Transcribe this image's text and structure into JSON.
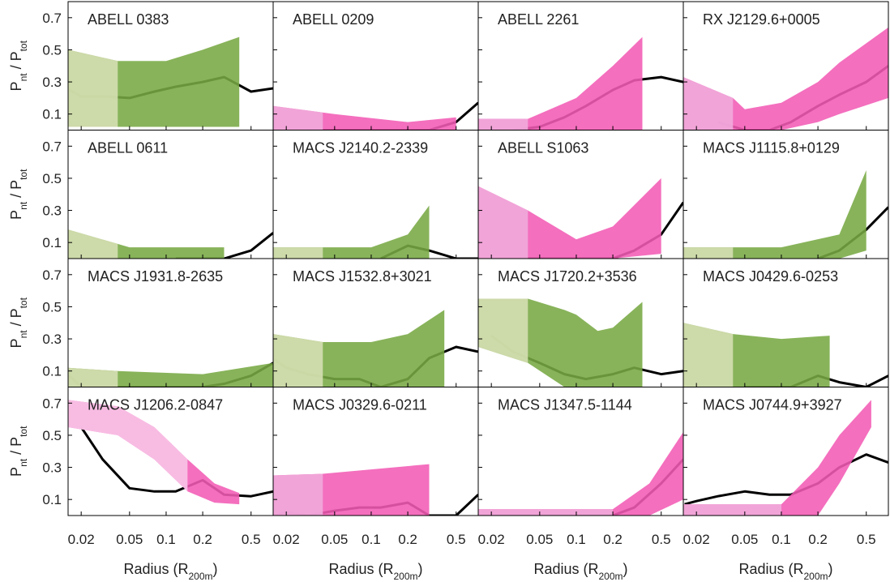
{
  "chart_data": {
    "type": "line",
    "xscale": "log",
    "xlim": [
      0.0156,
      0.76
    ],
    "ylim": [
      0,
      0.8
    ],
    "xticks": [
      0.02,
      0.05,
      0.1,
      0.2,
      0.5
    ],
    "yticks": [
      0.1,
      0.3,
      0.5,
      0.7
    ],
    "ylabel_parts": [
      "P",
      "nt",
      " / P",
      "tot"
    ],
    "xlabel_parts": [
      "Radius (R",
      "200m",
      ")"
    ],
    "line_color": "#000000",
    "line_x": [
      0.016,
      0.02,
      0.03,
      0.05,
      0.08,
      0.12,
      0.2,
      0.3,
      0.5,
      0.76
    ],
    "panels": [
      {
        "title": "ABELL 0383",
        "color": "#77a843",
        "light_color": "#d3ddb0",
        "split": 0.04,
        "band": {
          "x": [
            0.0156,
            0.04,
            0.1,
            0.2,
            0.4
          ],
          "lower": [
            0.02,
            0.02,
            0.02,
            0.02,
            0.02
          ],
          "upper": [
            0.5,
            0.43,
            0.43,
            0.5,
            0.58
          ]
        },
        "values": [
          0.25,
          0.21,
          0.21,
          0.2,
          0.24,
          0.27,
          0.3,
          0.33,
          0.24,
          0.26
        ]
      },
      {
        "title": "ABELL 0209",
        "color": "#f35bb5",
        "light_color": "#f0a8da",
        "split": 0.04,
        "band": {
          "x": [
            0.0156,
            0.05,
            0.2,
            0.5
          ],
          "lower": [
            0,
            0,
            0,
            0
          ],
          "upper": [
            0.15,
            0.1,
            0.05,
            0.08
          ]
        },
        "values": [
          null,
          null,
          0.0,
          0.0,
          0.0,
          0.0,
          0.0,
          0.0,
          0.05,
          0.17
        ]
      },
      {
        "title": "ABELL 2261",
        "color": "#f35bb5",
        "light_color": "#f0a8da",
        "split": 0.04,
        "band": {
          "x": [
            0.0156,
            0.04,
            0.1,
            0.2,
            0.35
          ],
          "lower": [
            0,
            0,
            0,
            0,
            0
          ],
          "upper": [
            0.07,
            0.07,
            0.2,
            0.4,
            0.58
          ]
        },
        "values": [
          null,
          null,
          0.0,
          0.02,
          0.08,
          0.15,
          0.25,
          0.31,
          0.33,
          0.3
        ]
      },
      {
        "title": "RX J2129.6+0005",
        "color": "#f35bb5",
        "light_color": "#f0a8da",
        "split": 0.04,
        "band": {
          "x": [
            0.0156,
            0.04,
            0.05,
            0.1,
            0.2,
            0.3,
            0.76
          ],
          "lower": [
            0,
            0,
            0,
            0,
            0.05,
            0.1,
            0.2
          ],
          "upper": [
            0.33,
            0.2,
            0.13,
            0.17,
            0.3,
            0.42,
            0.64
          ]
        },
        "values": [
          null,
          null,
          0.05,
          0.0,
          0.0,
          0.05,
          0.15,
          0.22,
          0.3,
          0.4
        ]
      },
      {
        "title": "ABELL 0611",
        "color": "#77a843",
        "light_color": "#d3ddb0",
        "split": 0.04,
        "band": {
          "x": [
            0.0156,
            0.05,
            0.3
          ],
          "lower": [
            0,
            0,
            0
          ],
          "upper": [
            0.18,
            0.07,
            0.07
          ]
        },
        "values": [
          null,
          null,
          null,
          null,
          null,
          0.0,
          0.0,
          0.0,
          0.05,
          0.16
        ]
      },
      {
        "title": "MACS J2140.2-2339",
        "color": "#77a843",
        "light_color": "#d3ddb0",
        "split": 0.04,
        "band": {
          "x": [
            0.0156,
            0.1,
            0.2,
            0.3
          ],
          "lower": [
            0,
            0,
            0,
            0
          ],
          "upper": [
            0.07,
            0.07,
            0.15,
            0.33
          ]
        },
        "values": [
          null,
          null,
          null,
          null,
          null,
          0.0,
          0.08,
          0.05,
          0.0,
          0.0
        ]
      },
      {
        "title": "ABELL S1063",
        "color": "#f35bb5",
        "light_color": "#f0a8da",
        "split": 0.04,
        "band": {
          "x": [
            0.0156,
            0.04,
            0.1,
            0.2,
            0.5
          ],
          "lower": [
            0,
            0,
            0,
            0,
            0.03
          ],
          "upper": [
            0.45,
            0.3,
            0.12,
            0.2,
            0.5
          ]
        },
        "values": [
          null,
          0.0,
          0.0,
          0.0,
          0.0,
          0.0,
          0.0,
          0.05,
          0.15,
          0.35
        ]
      },
      {
        "title": "MACS J1115.8+0129",
        "color": "#77a843",
        "light_color": "#d3ddb0",
        "split": 0.04,
        "band": {
          "x": [
            0.0156,
            0.1,
            0.3,
            0.5
          ],
          "lower": [
            0,
            0,
            0,
            0.05
          ],
          "upper": [
            0.07,
            0.07,
            0.15,
            0.55
          ]
        },
        "values": [
          null,
          null,
          null,
          null,
          null,
          null,
          0.0,
          0.05,
          0.18,
          0.32
        ]
      },
      {
        "title": "MACS J1931.8-2635",
        "color": "#77a843",
        "light_color": "#d3ddb0",
        "split": 0.04,
        "band": {
          "x": [
            0.0156,
            0.04,
            0.2,
            0.76
          ],
          "lower": [
            0,
            0,
            0,
            0
          ],
          "upper": [
            0.12,
            0.1,
            0.08,
            0.15
          ]
        },
        "values": [
          0.07,
          0.0,
          0.0,
          0.0,
          0.0,
          0.0,
          0.0,
          0.02,
          0.07,
          0.15
        ]
      },
      {
        "title": "MACS J1532.8+3021",
        "color": "#77a843",
        "light_color": "#d3ddb0",
        "split": 0.04,
        "band": {
          "x": [
            0.0156,
            0.04,
            0.1,
            0.2,
            0.4
          ],
          "lower": [
            0,
            0,
            0,
            0,
            0
          ],
          "upper": [
            0.33,
            0.28,
            0.28,
            0.33,
            0.48
          ]
        },
        "values": [
          0.17,
          0.12,
          0.08,
          0.05,
          0.05,
          0.0,
          0.05,
          0.18,
          0.25,
          0.22
        ]
      },
      {
        "title": "MACS J1720.2+3536",
        "color": "#77a843",
        "light_color": "#d3ddb0",
        "split": 0.04,
        "band": {
          "x": [
            0.0156,
            0.04,
            0.08,
            0.1,
            0.15,
            0.2,
            0.35
          ],
          "lower": [
            0.25,
            0.15,
            0.0,
            0.0,
            0.0,
            0.0,
            0.0
          ],
          "upper": [
            0.55,
            0.55,
            0.48,
            0.45,
            0.35,
            0.37,
            0.53
          ]
        },
        "values": [
          null,
          0.32,
          0.22,
          0.15,
          0.08,
          0.05,
          0.08,
          0.12,
          0.08,
          0.1
        ]
      },
      {
        "title": "MACS J0429.6-0253",
        "color": "#77a843",
        "light_color": "#d3ddb0",
        "split": 0.04,
        "band": {
          "x": [
            0.0156,
            0.04,
            0.1,
            0.25
          ],
          "lower": [
            0,
            0,
            0,
            0
          ],
          "upper": [
            0.4,
            0.33,
            0.3,
            0.32
          ]
        },
        "values": [
          null,
          null,
          null,
          0.0,
          0.0,
          0.0,
          0.07,
          0.03,
          0.0,
          0.07
        ]
      },
      {
        "title": "MACS J1206.2-0847",
        "color": "#f35bb5",
        "light_color": "#f7c2e6",
        "split": 0.15,
        "band": {
          "x": [
            0.0156,
            0.04,
            0.08,
            0.15,
            0.25,
            0.4
          ],
          "lower": [
            0.55,
            0.5,
            0.35,
            0.15,
            0.08,
            0.07
          ],
          "upper": [
            0.72,
            0.68,
            0.55,
            0.35,
            0.2,
            0.14
          ]
        },
        "values": [
          null,
          0.55,
          0.35,
          0.17,
          0.15,
          0.15,
          0.22,
          0.13,
          0.12,
          0.15
        ]
      },
      {
        "title": "MACS J0329.6-0211",
        "color": "#f35bb5",
        "light_color": "#f0a8da",
        "split": 0.04,
        "band": {
          "x": [
            0.0156,
            0.04,
            0.3
          ],
          "lower": [
            0,
            0,
            0
          ],
          "upper": [
            0.25,
            0.26,
            0.32
          ]
        },
        "values": [
          0.0,
          0.02,
          0.0,
          0.03,
          0.05,
          0.05,
          0.08,
          0.0,
          0.0,
          0.13
        ]
      },
      {
        "title": "MACS J1347.5-1144",
        "color": "#f35bb5",
        "light_color": "#f0a8da",
        "split": 0.2,
        "band": {
          "x": [
            0.0156,
            0.2,
            0.4,
            0.76
          ],
          "lower": [
            0,
            0,
            0,
            0.1
          ],
          "upper": [
            0.04,
            0.04,
            0.2,
            0.52
          ]
        },
        "values": [
          0.0,
          0.0,
          0.0,
          0.0,
          0.0,
          0.0,
          0.0,
          0.05,
          0.2,
          0.35
        ]
      },
      {
        "title": "MACS J0744.9+3927",
        "color": "#f35bb5",
        "light_color": "#f0a8da",
        "split": 0.1,
        "band": {
          "x": [
            0.0156,
            0.1,
            0.2,
            0.3,
            0.55
          ],
          "lower": [
            0,
            0,
            0,
            0.2,
            0.55
          ],
          "upper": [
            0.07,
            0.07,
            0.3,
            0.5,
            0.72
          ]
        },
        "values": [
          0.07,
          0.09,
          0.12,
          0.15,
          0.13,
          0.13,
          0.2,
          0.3,
          0.38,
          0.33
        ]
      }
    ]
  }
}
